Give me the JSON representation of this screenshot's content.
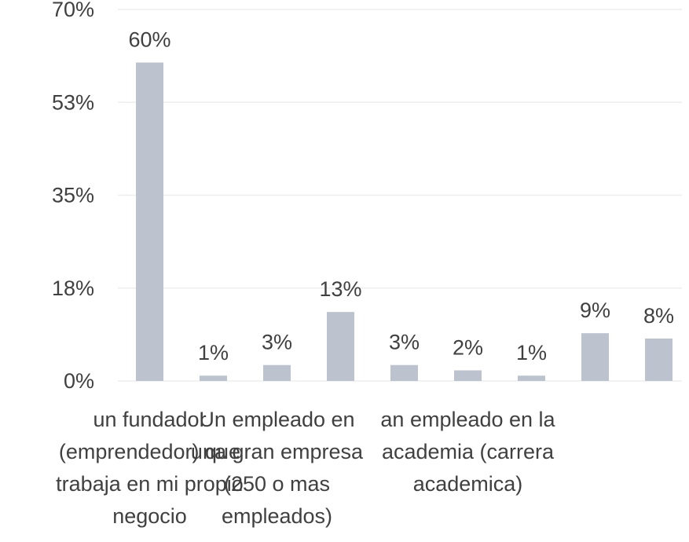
{
  "chart_data": {
    "type": "bar",
    "title": "",
    "xlabel": "",
    "ylabel": "",
    "grid": true,
    "legend": "none",
    "ylim": [
      0,
      70
    ],
    "y_ticks": [
      {
        "value": 0,
        "label": "0%"
      },
      {
        "value": 17.5,
        "label": "18%"
      },
      {
        "value": 35,
        "label": "35%"
      },
      {
        "value": 52.5,
        "label": "53%"
      },
      {
        "value": 70,
        "label": "70%"
      }
    ],
    "values": [
      60,
      1,
      3,
      13,
      3,
      2,
      1,
      9,
      8
    ],
    "data_labels": [
      "60%",
      "1%",
      "3%",
      "13%",
      "3%",
      "2%",
      "1%",
      "9%",
      "8%"
    ],
    "categories": [
      "un fundador (emprendedor) que trabaja en mi propio negocio",
      "",
      "Un empleado en una gran empresa (250 o mas empleados)",
      "",
      "",
      "an empleado en la academia (carrera academica)",
      "",
      "",
      ""
    ],
    "category_label_lines": [
      [
        "un fundador",
        "(emprendedor) que",
        "trabaja en mi propio",
        "negocio"
      ],
      [],
      [
        "Un empleado en",
        "una gran empresa",
        "(250 o mas",
        "empleados)"
      ],
      [],
      [],
      [
        "an empleado en la",
        "academia (carrera",
        "academica)"
      ],
      [],
      [],
      []
    ],
    "colors": {
      "bar": "#bcc3ce",
      "text": "#404040",
      "grid": "#eeeeee"
    }
  }
}
